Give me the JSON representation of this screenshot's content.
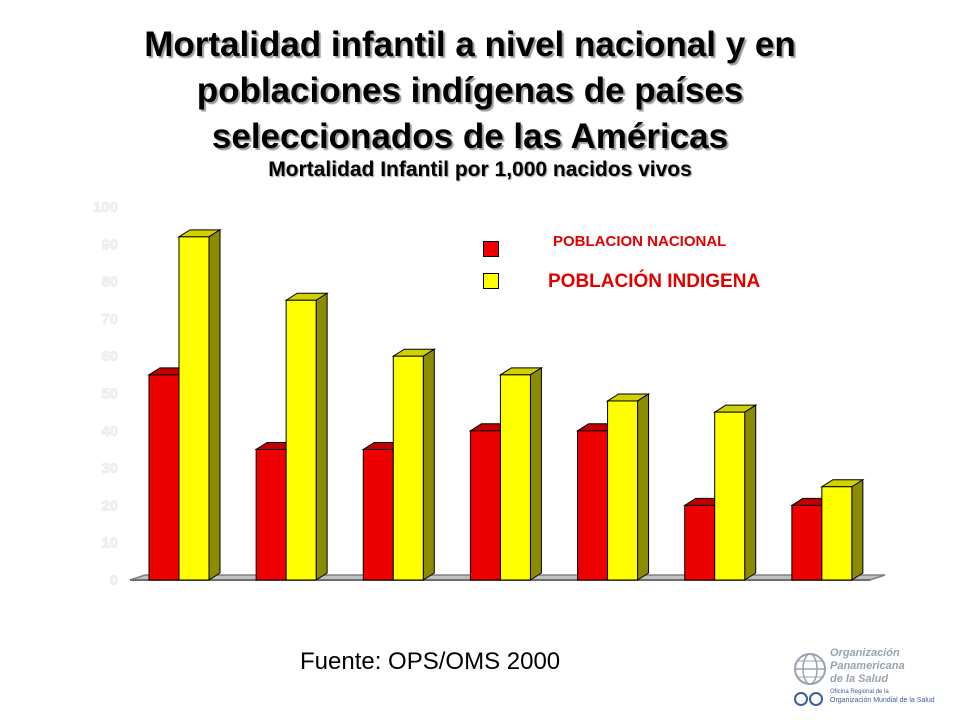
{
  "title_lines": [
    "Mortalidad infantil a nivel nacional y en",
    "poblaciones indígenas de países",
    "seleccionados de las Américas"
  ],
  "subtitle": "Mortalidad Infantil por 1,000 nacidos vivos",
  "source": "Fuente: OPS/OMS 2000",
  "logo": {
    "line1": "Organización",
    "line2": "Panamericana",
    "line3": "de la Salud",
    "line4": "Oficina Regional de la",
    "line5": "Organización Mundial de la Salud"
  },
  "colors": {
    "nacional": "#ee0000",
    "indigena": "#ffff00",
    "axis": "#808080"
  },
  "chart_data": {
    "type": "bar",
    "title": "Mortalidad infantil a nivel nacional y en poblaciones indígenas de países seleccionados de las Américas",
    "subtitle": "Mortalidad Infantil por 1,000 nacidos vivos",
    "categories": [
      "",
      "",
      "",
      "",
      "",
      "",
      ""
    ],
    "series": [
      {
        "name": "POBLACION NACIONAL",
        "values": [
          55,
          35,
          35,
          40,
          40,
          20,
          20
        ]
      },
      {
        "name": "POBLACIÓN INDIGENA",
        "values": [
          92,
          75,
          60,
          55,
          48,
          45,
          25
        ]
      }
    ],
    "ylim": [
      0,
      100
    ],
    "yticks": [
      0,
      10,
      20,
      30,
      40,
      50,
      60,
      70,
      80,
      90,
      100
    ],
    "legend": "top-right",
    "grid": false
  }
}
